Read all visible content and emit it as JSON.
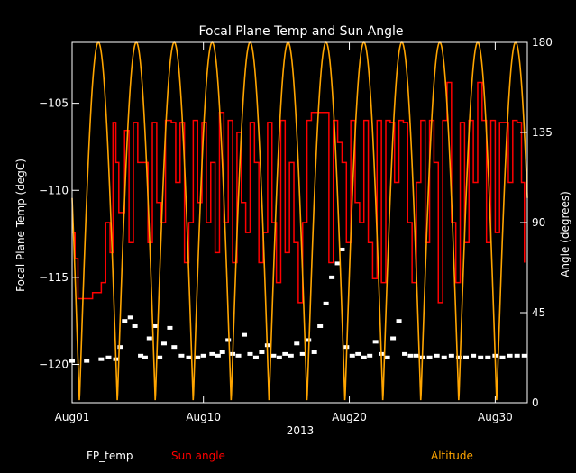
{
  "chart_data": {
    "type": "line",
    "title": "Focal Plane Temp and Sun Angle",
    "xlabel": "2013",
    "ylabel_left": "Focal Plane Temp (degC)",
    "ylabel_right": "Angle (degrees)",
    "x_ticks": [
      "Aug01",
      "Aug10",
      "Aug20",
      "Aug30"
    ],
    "x_tick_days": [
      1,
      10,
      20,
      30
    ],
    "xlim": [
      1,
      32.2
    ],
    "ylim_left": [
      -122.2,
      -101.5
    ],
    "ylim_right": [
      0,
      180
    ],
    "y_ticks_left": [
      -105,
      -110,
      -115,
      -120
    ],
    "y_ticks_right": [
      0,
      45,
      90,
      135,
      180
    ],
    "legend": [
      "FP_temp",
      "Sun angle",
      "Altitude"
    ],
    "colors": {
      "FP_temp": "#ffffff",
      "Sun angle": "#ff0000",
      "Altitude": "#ffa500",
      "axes": "#ffffff"
    },
    "series": [
      {
        "name": "FP_temp",
        "axis": "left",
        "style": "points",
        "x": [
          1.0,
          2.0,
          3.0,
          3.5,
          4.0,
          4.3,
          4.6,
          5.0,
          5.3,
          5.7,
          6.0,
          6.3,
          6.7,
          7.0,
          7.3,
          7.7,
          8.0,
          8.5,
          9.0,
          9.6,
          10.0,
          10.6,
          11.0,
          11.3,
          11.7,
          12.0,
          12.4,
          12.8,
          13.2,
          13.6,
          14.0,
          14.4,
          14.8,
          15.2,
          15.6,
          16.0,
          16.4,
          16.8,
          17.2,
          17.6,
          18.0,
          18.4,
          18.8,
          19.2,
          19.5,
          19.8,
          20.2,
          20.6,
          21.0,
          21.4,
          21.8,
          22.2,
          22.6,
          23.0,
          23.4,
          23.8,
          24.2,
          24.6,
          25.0,
          25.5,
          26.0,
          26.5,
          27.0,
          27.5,
          28.0,
          28.5,
          29.0,
          29.5,
          30.0,
          30.5,
          31.0,
          31.5,
          32.0
        ],
        "y": [
          -119.8,
          -119.8,
          -119.7,
          -119.6,
          -119.7,
          -119.0,
          -117.5,
          -117.3,
          -117.8,
          -119.5,
          -119.6,
          -118.5,
          -117.8,
          -119.6,
          -118.8,
          -117.9,
          -119.0,
          -119.5,
          -119.6,
          -119.6,
          -119.5,
          -119.4,
          -119.5,
          -119.3,
          -118.6,
          -119.4,
          -119.5,
          -118.3,
          -119.4,
          -119.6,
          -119.3,
          -118.9,
          -119.5,
          -119.6,
          -119.4,
          -119.5,
          -118.8,
          -119.4,
          -118.6,
          -119.3,
          -117.8,
          -116.5,
          -115.0,
          -114.2,
          -113.4,
          -119.0,
          -119.5,
          -119.4,
          -119.6,
          -119.5,
          -118.7,
          -119.4,
          -119.6,
          -118.5,
          -117.5,
          -119.4,
          -119.5,
          -119.5,
          -119.6,
          -119.6,
          -119.5,
          -119.6,
          -119.5,
          -119.6,
          -119.6,
          -119.5,
          -119.6,
          -119.6,
          -119.5,
          -119.6,
          -119.5,
          -119.5,
          -119.5
        ]
      },
      {
        "name": "Sun angle",
        "axis": "right",
        "style": "step",
        "x": [
          1.0,
          1.2,
          1.4,
          2.2,
          2.4,
          3.0,
          3.3,
          3.6,
          3.8,
          4.0,
          4.2,
          4.6,
          4.9,
          5.2,
          5.5,
          5.8,
          6.2,
          6.5,
          6.8,
          7.1,
          7.4,
          7.8,
          8.1,
          8.4,
          8.7,
          9.0,
          9.3,
          9.6,
          9.9,
          10.2,
          10.5,
          10.8,
          11.1,
          11.4,
          11.7,
          12.0,
          12.3,
          12.6,
          12.9,
          13.2,
          13.5,
          13.8,
          14.1,
          14.4,
          14.7,
          15.0,
          15.3,
          15.6,
          15.9,
          16.2,
          16.5,
          16.8,
          17.1,
          17.4,
          17.7,
          18.0,
          18.3,
          18.6,
          18.9,
          19.2,
          19.5,
          19.8,
          20.1,
          20.4,
          20.7,
          21.0,
          21.3,
          21.6,
          21.9,
          22.2,
          22.5,
          22.8,
          23.1,
          23.4,
          23.7,
          24.0,
          24.3,
          24.6,
          24.9,
          25.2,
          25.5,
          25.8,
          26.1,
          26.4,
          26.7,
          27.0,
          27.3,
          27.6,
          27.9,
          28.2,
          28.5,
          28.8,
          29.1,
          29.4,
          29.7,
          30.0,
          30.3,
          30.6,
          30.9,
          31.2,
          31.5,
          31.8,
          32.0
        ],
        "y": [
          85,
          72,
          52,
          52,
          55,
          60,
          90,
          75,
          140,
          120,
          95,
          136,
          80,
          140,
          120,
          120,
          80,
          140,
          100,
          90,
          141,
          140,
          110,
          140,
          70,
          90,
          141,
          100,
          140,
          90,
          120,
          75,
          145,
          90,
          141,
          70,
          135,
          100,
          85,
          140,
          120,
          70,
          85,
          140,
          90,
          60,
          141,
          75,
          120,
          80,
          50,
          90,
          141,
          145,
          145,
          145,
          145,
          70,
          141,
          130,
          120,
          80,
          141,
          100,
          90,
          141,
          80,
          62,
          141,
          60,
          141,
          140,
          110,
          141,
          140,
          90,
          60,
          110,
          141,
          80,
          141,
          120,
          50,
          141,
          160,
          90,
          60,
          140,
          80,
          141,
          110,
          160,
          141,
          80,
          141,
          85,
          140,
          140,
          110,
          141,
          140,
          110,
          70
        ]
      },
      {
        "name": "Altitude",
        "axis": "right",
        "style": "line",
        "period_days": 2.6,
        "max": 180,
        "min": 0
      }
    ]
  }
}
